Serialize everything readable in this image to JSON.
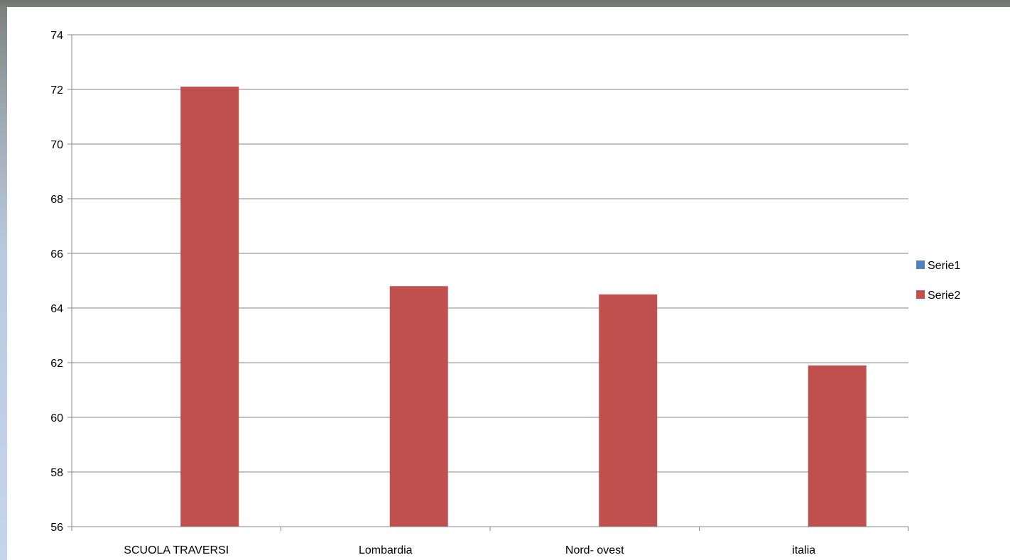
{
  "chart_data": {
    "type": "bar",
    "title": "",
    "xlabel": "",
    "ylabel": "",
    "categories": [
      "SCUOLA TRAVERSI",
      "Lombardia",
      "Nord- ovest",
      "italia"
    ],
    "series": [
      {
        "name": "Serie1",
        "values": [
          null,
          null,
          null,
          null
        ],
        "color": "#4f81bd"
      },
      {
        "name": "Serie2",
        "values": [
          72.1,
          64.8,
          64.5,
          61.9
        ],
        "color": "#c0504d"
      }
    ],
    "ylim": [
      56,
      74
    ],
    "yticks": [
      "56",
      "58",
      "60",
      "62",
      "64",
      "66",
      "68",
      "70",
      "72",
      "74"
    ],
    "grid": true,
    "legend": "right"
  }
}
